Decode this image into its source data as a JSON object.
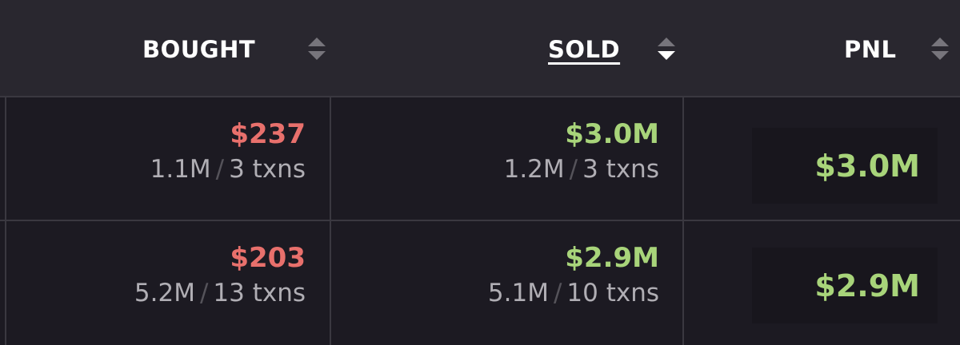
{
  "columns": [
    {
      "label": "BOUGHT",
      "sort": "none"
    },
    {
      "label": "SOLD",
      "sort": "descending",
      "active": true
    },
    {
      "label": "PNL",
      "sort": "none"
    }
  ],
  "rows": [
    {
      "bought": {
        "amount": "$237",
        "tokens": "1.1M",
        "txns": "3 txns"
      },
      "sold": {
        "amount": "$3.0M",
        "tokens": "1.2M",
        "txns": "3 txns"
      },
      "pnl": "$3.0M"
    },
    {
      "bought": {
        "amount": "$203",
        "tokens": "5.2M",
        "txns": "13 txns"
      },
      "sold": {
        "amount": "$2.9M",
        "tokens": "5.1M",
        "txns": "10 txns"
      },
      "pnl": "$2.9M"
    }
  ],
  "separator": "/",
  "colors": {
    "negative": "#e8706c",
    "positive": "#a8d47a",
    "background": "#1c1a22",
    "header": "#29272f"
  }
}
